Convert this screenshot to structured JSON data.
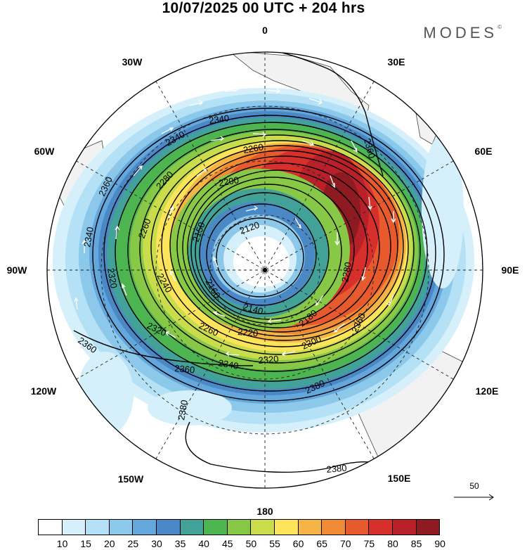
{
  "title": "10/07/2025  00 UTC  + 204 hrs",
  "brand": "MODES",
  "brand_mark": "©",
  "longitude_labels": {
    "top": "0",
    "nne": "30E",
    "ene": "60E",
    "east": "90E",
    "ese": "120E",
    "sse": "150E",
    "bottom": "180",
    "ssw": "150W",
    "wsw": "120W",
    "west": "90W",
    "wnw": "60W",
    "nnw": "30W"
  },
  "contour_labels": [
    "2340",
    "2340",
    "2260",
    "2280",
    "2200",
    "2260",
    "2150",
    "2120",
    "2360",
    "2340",
    "2320",
    "2360",
    "2320",
    "2240",
    "2160",
    "2140",
    "2260",
    "2220",
    "2180",
    "2280",
    "2300",
    "2320",
    "2340",
    "2360",
    "2360",
    "2380",
    "2360",
    "2380",
    "2380"
  ],
  "reference_vector": {
    "label": "50",
    "icon": "arrow-right-icon"
  },
  "colorbar": {
    "ticks": [
      "10",
      "15",
      "20",
      "25",
      "30",
      "35",
      "40",
      "45",
      "50",
      "55",
      "60",
      "65",
      "70",
      "75",
      "80",
      "85",
      "90"
    ],
    "colors": [
      "#ffffff",
      "#d5f0fb",
      "#b4e1f5",
      "#8cc8ea",
      "#63a7dc",
      "#4a88c6",
      "#43a298",
      "#4cb550",
      "#87c846",
      "#c9dc4c",
      "#fbe35a",
      "#f5b546",
      "#f18a34",
      "#e75a2e",
      "#d62f2c",
      "#b8202a",
      "#8e1b22"
    ]
  }
}
